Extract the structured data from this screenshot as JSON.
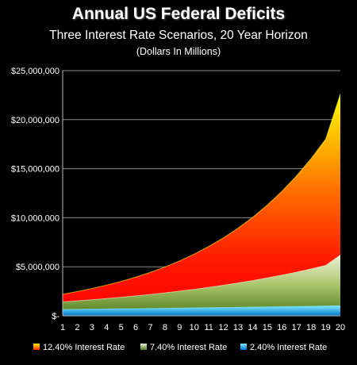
{
  "chart_data": {
    "type": "area",
    "title": "Annual US Federal Deficits",
    "subtitle": "Three Interest Rate Scenarios, 20 Year Horizon",
    "note": "(Dollars In Millions)",
    "xlabel": "",
    "ylabel": "",
    "x": [
      1,
      2,
      3,
      4,
      5,
      6,
      7,
      8,
      9,
      10,
      11,
      12,
      13,
      14,
      15,
      16,
      17,
      18,
      19,
      20
    ],
    "ylim": [
      0,
      25000000
    ],
    "yticks": [
      0,
      5000000,
      10000000,
      15000000,
      20000000,
      25000000
    ],
    "ytick_labels": [
      "$-",
      "$5,000,000",
      "$10,000,000",
      "$15,000,000",
      "$20,000,000",
      "$25,000,000"
    ],
    "grid": true,
    "legend_position": "bottom",
    "series": [
      {
        "name": "12.40% Interest Rate",
        "values": [
          2200000,
          2475000,
          2780000,
          3130000,
          3510000,
          3945000,
          4430000,
          4980000,
          5600000,
          6295000,
          7075000,
          7950000,
          8935000,
          10040000,
          11290000,
          12690000,
          14260000,
          16030000,
          18020000,
          22600000
        ],
        "color_top": "#ffff00",
        "color_bottom": "#ff0000"
      },
      {
        "name": "7.40% Interest Rate",
        "values": [
          1420000,
          1525000,
          1640000,
          1760000,
          1890000,
          2030000,
          2180000,
          2340000,
          2515000,
          2700000,
          2900000,
          3115000,
          3345000,
          3595000,
          3860000,
          4145000,
          4450000,
          4780000,
          5135000,
          6200000
        ],
        "color_top": "#eef2d6",
        "color_bottom": "#4f7d1d"
      },
      {
        "name": "2.40% Interest Rate",
        "values": [
          650000,
          666000,
          682000,
          698000,
          715000,
          732000,
          750000,
          768000,
          786000,
          805000,
          825000,
          845000,
          865000,
          886000,
          907000,
          929000,
          951000,
          974000,
          997000,
          1020000
        ],
        "color_top": "#7fe8ff",
        "color_bottom": "#0077cc"
      }
    ]
  }
}
